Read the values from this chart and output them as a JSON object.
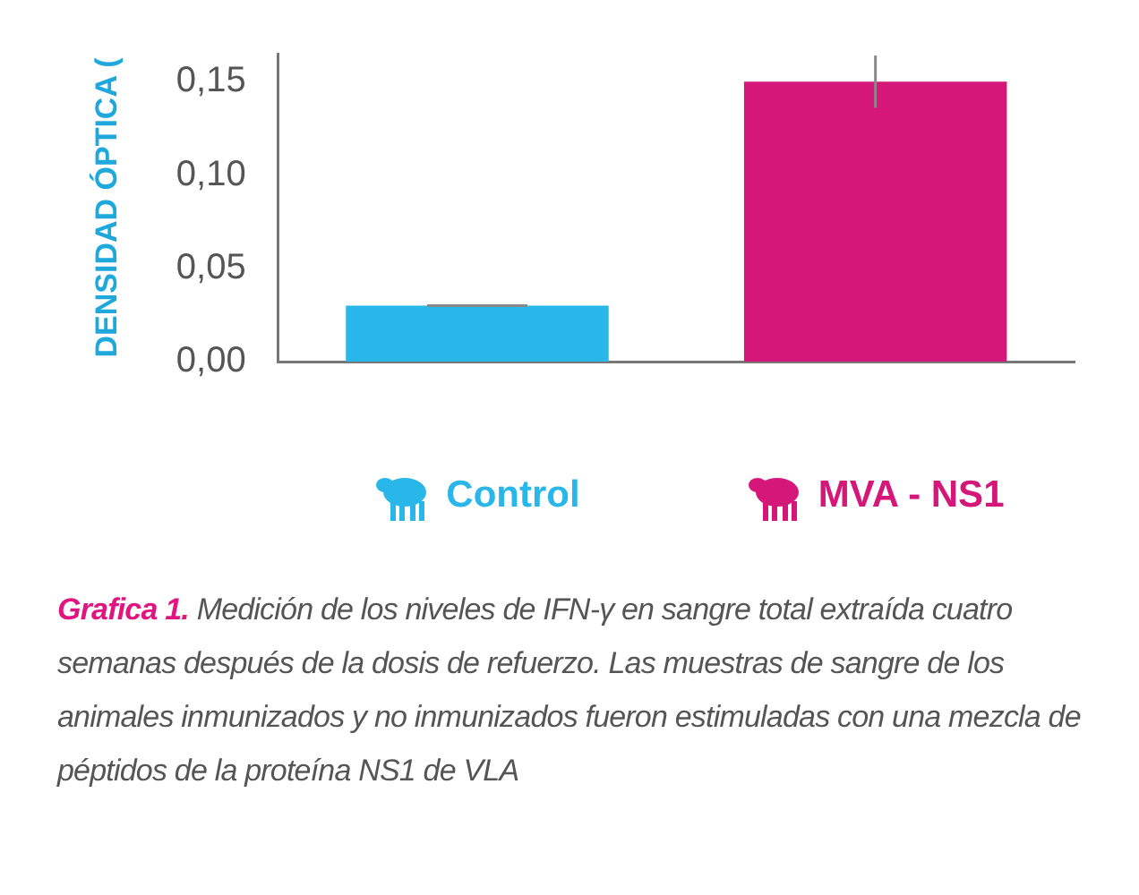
{
  "chart_data": {
    "type": "bar",
    "ylabel": "DENSIDAD ÓPTICA (",
    "categories": [
      "Control",
      "MVA - NS1"
    ],
    "values": [
      0.03,
      0.15
    ],
    "colors": [
      "#29b6e8",
      "#d6177a"
    ],
    "errors": [
      0,
      0.014
    ],
    "ylim": [
      0,
      0.165
    ],
    "yticks": [
      {
        "value": 0,
        "label": "0,00"
      },
      {
        "value": 0.05,
        "label": "0,05"
      },
      {
        "value": 0.1,
        "label": "0,10"
      },
      {
        "value": 0.15,
        "label": "0,15"
      }
    ],
    "grid": false,
    "legend": false,
    "annotations": [
      "Grafica 1.",
      "Medición de los niveles de IFN-γ en sangre total extraída cuatro semanas después de la dosis de refuerzo. Las muestras de sangre de los animales inmunizados y no inmunizados fueron estimuladas con una mezcla de péptidos de la proteína NS1 de VLA"
    ]
  }
}
